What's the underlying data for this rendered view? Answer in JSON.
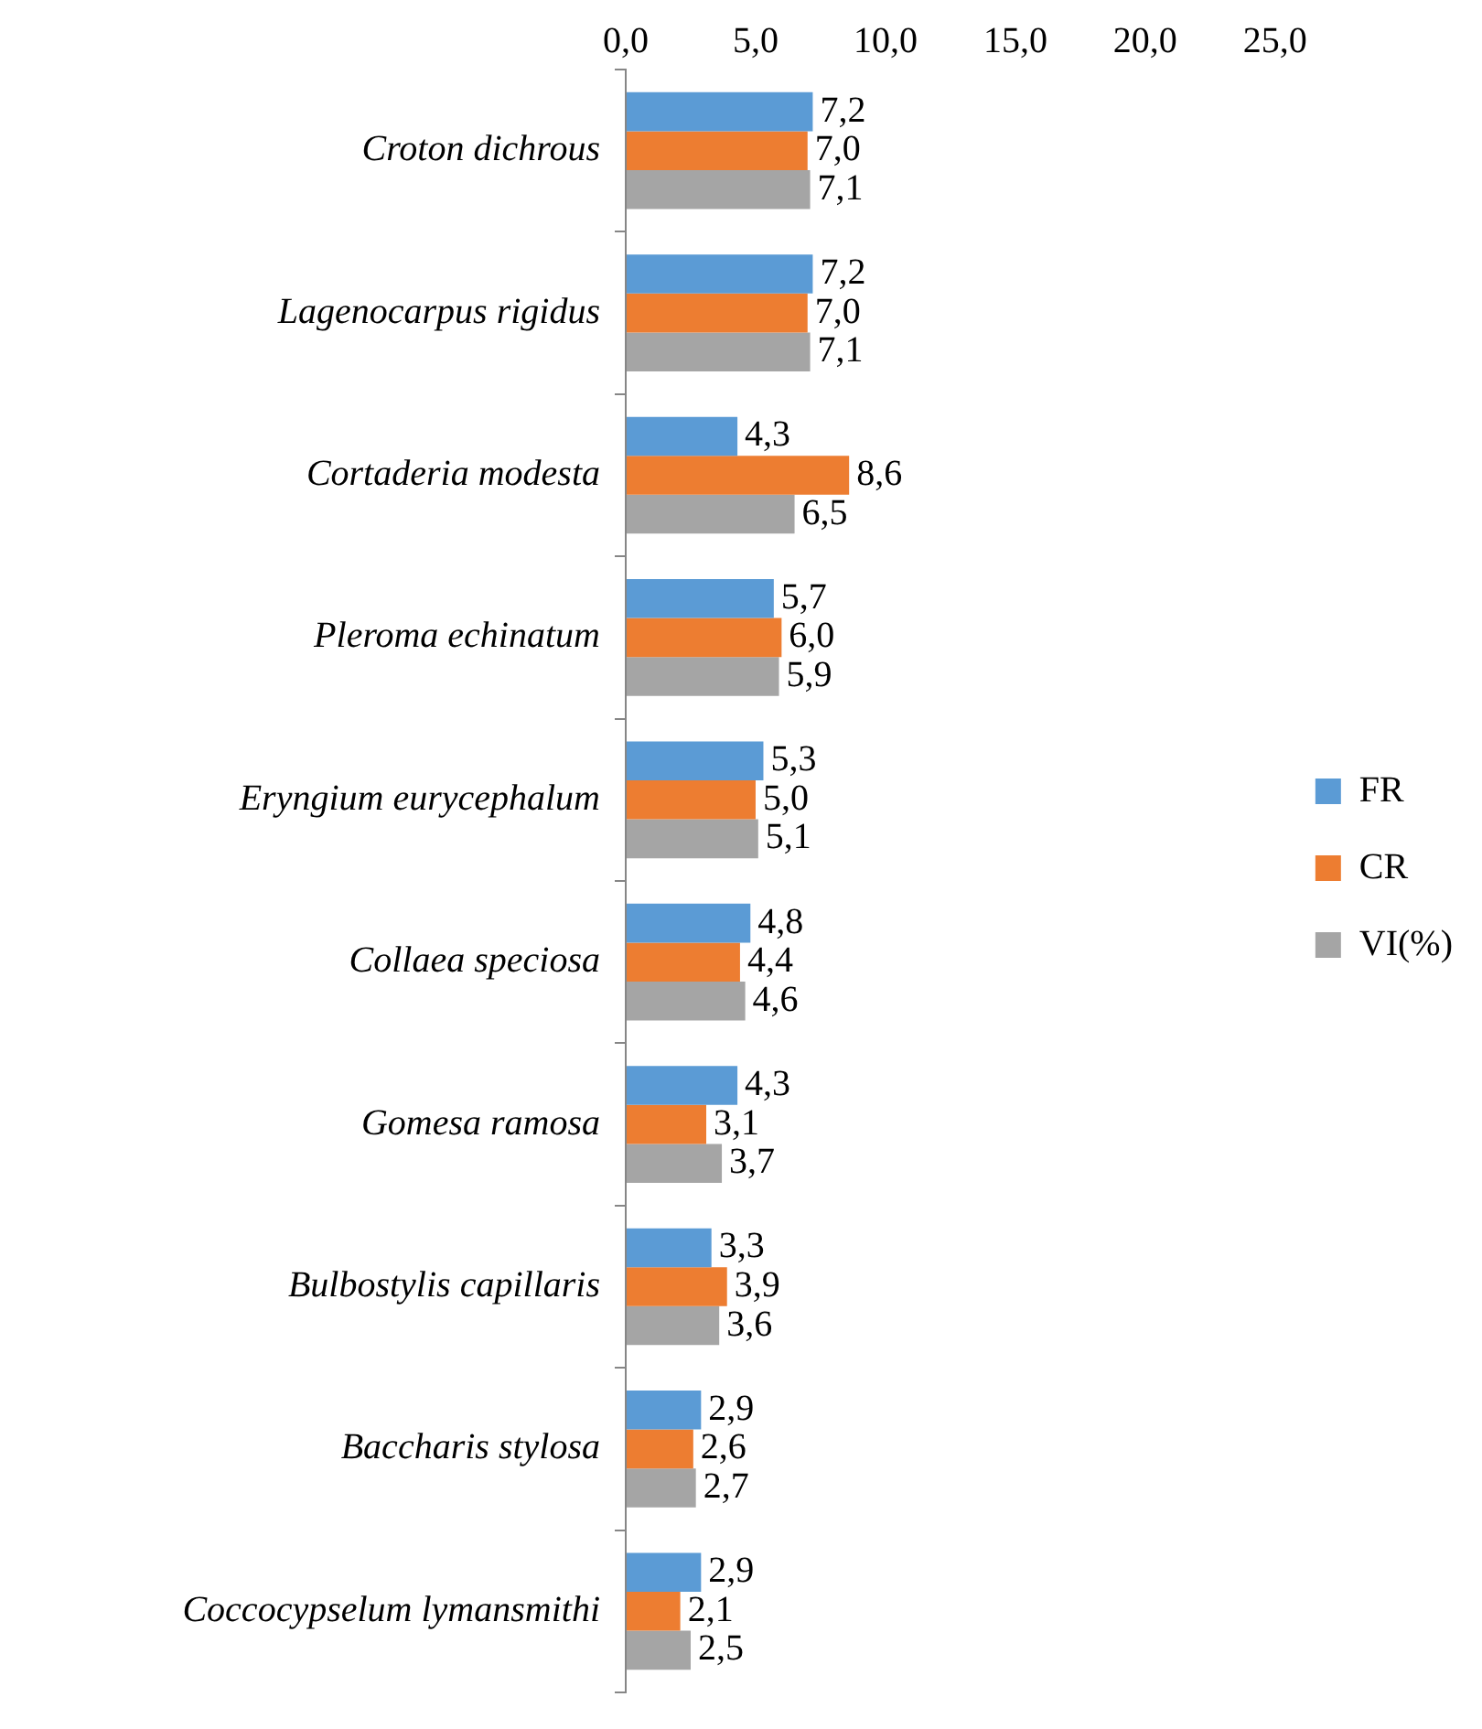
{
  "chart_data": {
    "type": "bar",
    "orientation": "horizontal",
    "categories": [
      "Croton dichrous",
      "Lagenocarpus rigidus",
      "Cortaderia modesta",
      "Pleroma echinatum",
      "Eryngium eurycephalum",
      "Collaea speciosa",
      "Gomesa ramosa",
      "Bulbostylis capillaris",
      "Baccharis stylosa",
      "Coccocypselum lymansmithi"
    ],
    "series": [
      {
        "name": "FR",
        "color": "#5b9bd5",
        "values": [
          7.2,
          7.2,
          4.3,
          5.7,
          5.3,
          4.8,
          4.3,
          3.3,
          2.9,
          2.9
        ],
        "value_labels": [
          "7,2",
          "7,2",
          "4,3",
          "5,7",
          "5,3",
          "4,8",
          "4,3",
          "3,3",
          "2,9",
          "2,9"
        ]
      },
      {
        "name": "CR",
        "color": "#ed7d31",
        "values": [
          7.0,
          7.0,
          8.6,
          6.0,
          5.0,
          4.4,
          3.1,
          3.9,
          2.6,
          2.1
        ],
        "value_labels": [
          "7,0",
          "7,0",
          "8,6",
          "6,0",
          "5,0",
          "4,4",
          "3,1",
          "3,9",
          "2,6",
          "2,1"
        ]
      },
      {
        "name": "VI(%)",
        "color": "#a5a5a5",
        "values": [
          7.1,
          7.1,
          6.5,
          5.9,
          5.1,
          4.6,
          3.7,
          3.6,
          2.7,
          2.5
        ],
        "value_labels": [
          "7,1",
          "7,1",
          "6,5",
          "5,9",
          "5,1",
          "4,6",
          "3,7",
          "3,6",
          "2,7",
          "2,5"
        ]
      }
    ],
    "xlim": [
      0,
      25
    ],
    "xticks": [
      {
        "value": 0,
        "label": "0,0"
      },
      {
        "value": 5,
        "label": "5,0"
      },
      {
        "value": 10,
        "label": "10,0"
      },
      {
        "value": 15,
        "label": "15,0"
      },
      {
        "value": 20,
        "label": "20,0"
      },
      {
        "value": 25,
        "label": "25,0"
      }
    ],
    "grid": false,
    "legend": "right"
  }
}
